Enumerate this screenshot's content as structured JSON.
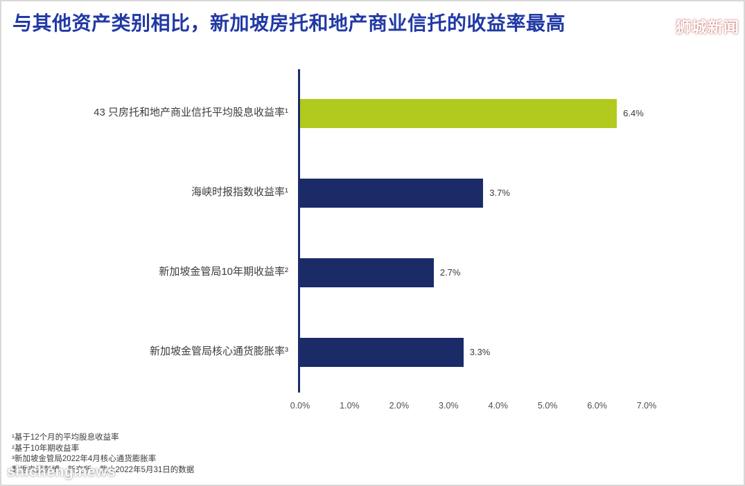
{
  "title": "与其他资产类别相比，新加坡房托和地产商业信托的收益率最高",
  "watermark_top": "狮城新闻",
  "watermark_bottom": "shicheng.news",
  "chart_data": {
    "type": "bar",
    "orientation": "horizontal",
    "title": "与其他资产类别相比，新加坡房托和地产商业信托的收益率最高",
    "categories": [
      "43 只房托和地产商业信托平均股息收益率¹",
      "海峡时报指数收益率¹",
      "新加坡金管局10年期收益率²",
      "新加坡金管局核心通货膨胀率³"
    ],
    "values": [
      6.4,
      3.7,
      2.7,
      3.3
    ],
    "value_labels": [
      "6.4%",
      "3.7%",
      "2.7%",
      "3.3%"
    ],
    "bar_colors": [
      "#b2ca1e",
      "#1a2b68",
      "#1a2b68",
      "#1a2b68"
    ],
    "x_ticks": [
      "0.0%",
      "1.0%",
      "2.0%",
      "3.0%",
      "4.0%",
      "5.0%",
      "6.0%",
      "7.0%"
    ],
    "xlim": [
      0,
      7
    ],
    "xlabel": "",
    "ylabel": "",
    "grid": false,
    "legend": false
  },
  "footnotes": [
    "¹基于12个月的平均股息收益率",
    "²基于10年期收益率",
    "³新加坡金管局2022年4月核心通货膨胀率",
    "数据来源彭博，新交所，截止2022年5月31日的数据"
  ],
  "colors": {
    "title": "#2139a6",
    "bar_navy": "#1a2b68",
    "bar_green": "#b2ca1e",
    "axis_line": "#1a2b68"
  }
}
